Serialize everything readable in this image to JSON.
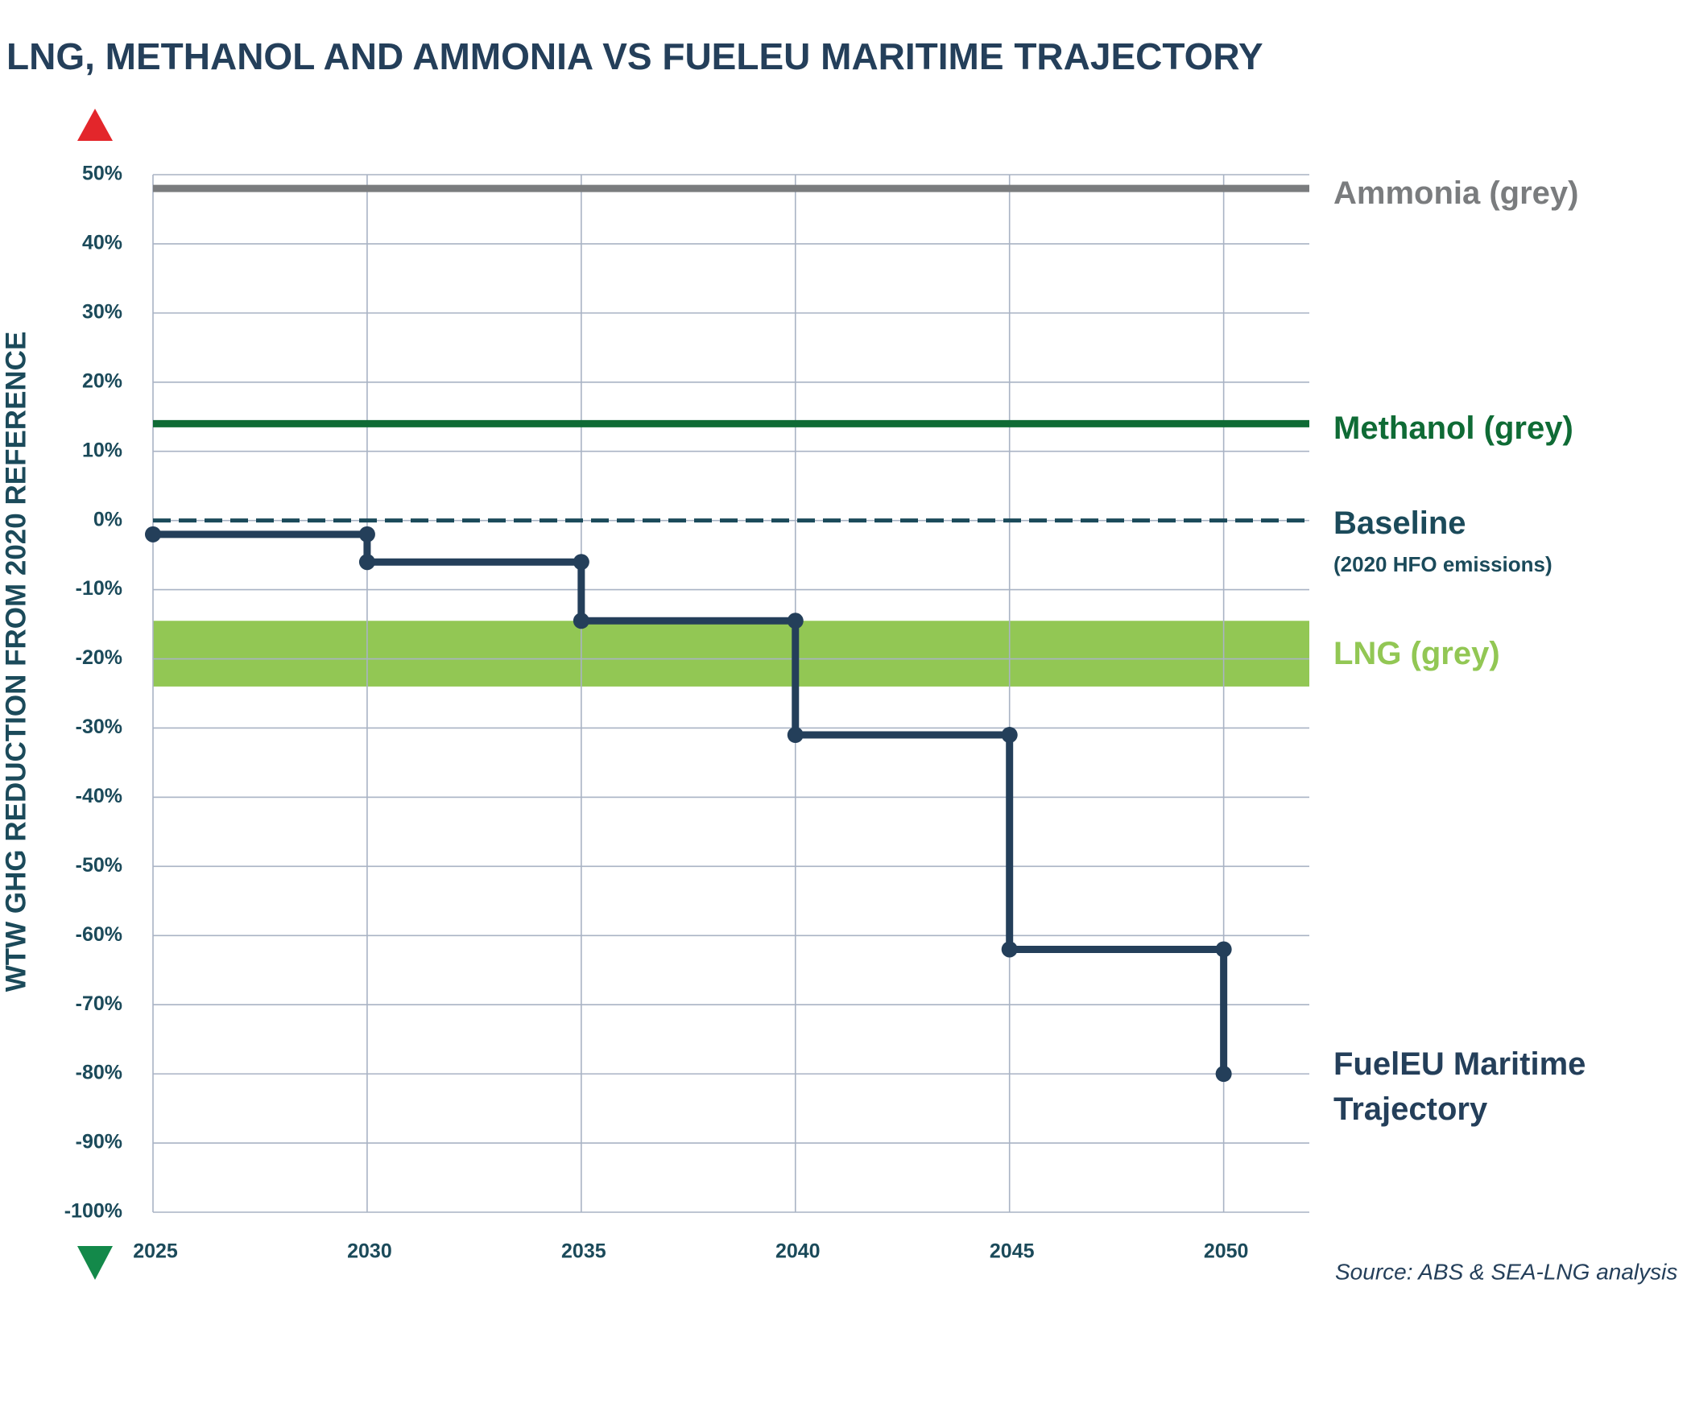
{
  "chart_data": {
    "type": "line",
    "title": "LNG, METHANOL AND AMMONIA VS FUELEU MARITIME TRAJECTORY",
    "y_label": "WTW GHG REDUCTION FROM 2020 REFERENCE",
    "source": "Source: ABS & SEA-LNG analysis",
    "xlim": [
      2025,
      2052
    ],
    "xticks": [
      2025,
      2030,
      2035,
      2040,
      2045,
      2050
    ],
    "ylim": [
      -100,
      50
    ],
    "yticks": [
      {
        "value": 50,
        "label": "50%"
      },
      {
        "value": 40,
        "label": "40%"
      },
      {
        "value": 30,
        "label": "30%"
      },
      {
        "value": 20,
        "label": "20%"
      },
      {
        "value": 10,
        "label": "10%"
      },
      {
        "value": 0,
        "label": "0%"
      },
      {
        "value": -10,
        "label": "-10%"
      },
      {
        "value": -20,
        "label": "-20%"
      },
      {
        "value": -30,
        "label": "-30%"
      },
      {
        "value": -40,
        "label": "-40%"
      },
      {
        "value": -50,
        "label": "-50%"
      },
      {
        "value": -60,
        "label": "-60%"
      },
      {
        "value": -70,
        "label": "-70%"
      },
      {
        "value": -80,
        "label": "-80%"
      },
      {
        "value": -90,
        "label": "-90%"
      },
      {
        "value": -100,
        "label": "-100%"
      }
    ],
    "grid": true,
    "series": [
      {
        "name": "FuelEU Maritime Trajectory",
        "color": "#243f5a",
        "x": [
          2025,
          2030,
          2030,
          2035,
          2035,
          2040,
          2040,
          2045,
          2045,
          2050,
          2050
        ],
        "values": [
          -2,
          -2,
          -6,
          -6,
          -14.5,
          -14.5,
          -31,
          -31,
          -62,
          -62,
          -80
        ]
      }
    ],
    "reference_lines": [
      {
        "name": "Ammonia (grey)",
        "value": 48,
        "color": "#7a7c7e",
        "line_style": "solid"
      },
      {
        "name": "Methanol (grey)",
        "value": 14,
        "color": "#0f6b35",
        "line_style": "solid"
      },
      {
        "name": "Baseline",
        "note": "(2020 HFO emissions)",
        "value": 0,
        "color": "#1b4a5a",
        "line_style": "dashed"
      }
    ],
    "bands": [
      {
        "name": "LNG (grey)",
        "range": [
          -24,
          -14.5
        ],
        "color": "#92c754"
      }
    ]
  }
}
